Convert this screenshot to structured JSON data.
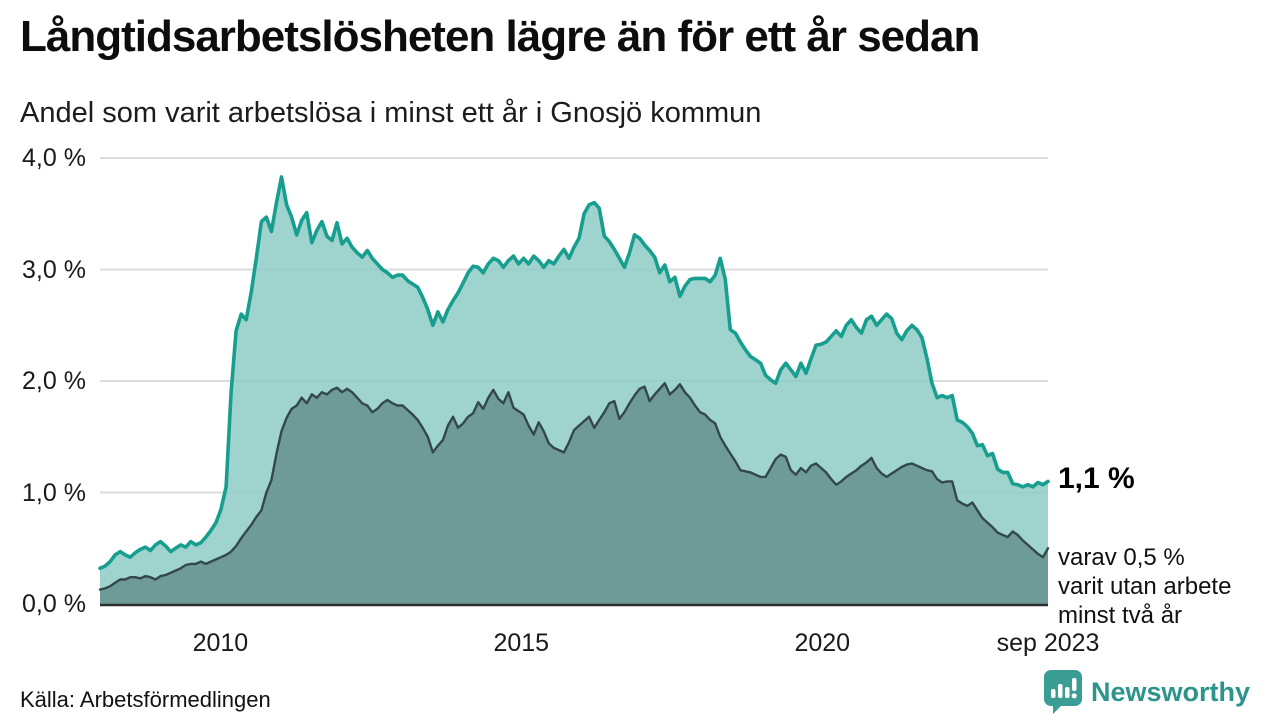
{
  "header": {
    "title": "Långtidsarbetslösheten lägre än för ett år sedan",
    "subtitle": "Andel som varit arbetslösa i minst ett år i Gnosjö kommun"
  },
  "annotations": {
    "end_value": "1,1 %",
    "note_line1": "varav 0,5 %",
    "note_line2": "varit utan arbete",
    "note_line3": "minst två år"
  },
  "footer": {
    "source": "Källa: Arbetsförmedlingen",
    "brand": "Newsworthy"
  },
  "chart_data": {
    "type": "area",
    "title": "Långtidsarbetslösheten lägre än för ett år sedan",
    "subtitle": "Andel som varit arbetslösa i minst ett år i Gnosjö kommun",
    "unit": "%",
    "x_start": "jan 2008",
    "x_end": "sep 2023",
    "frequency": "monthly",
    "ylim": [
      0,
      4
    ],
    "grid": true,
    "legend_position": "none",
    "y_ticks": [
      {
        "label": "0,0 %",
        "v": 0
      },
      {
        "label": "1,0 %",
        "v": 1
      },
      {
        "label": "2,0 %",
        "v": 2
      },
      {
        "label": "3,0 %",
        "v": 3
      },
      {
        "label": "4,0 %",
        "v": 4
      }
    ],
    "x_ticks": [
      {
        "label": "2010",
        "f": 0.127
      },
      {
        "label": "2015",
        "f": 0.4444
      },
      {
        "label": "2020",
        "f": 0.7619
      },
      {
        "label": "sep 2023",
        "f": 1.0
      }
    ],
    "gridline_values": [
      1,
      2,
      3,
      4
    ],
    "colors": {
      "line1": "#179e8f",
      "fill1": "#8dccc4",
      "line2": "#33484a",
      "fill2": "#6c9894",
      "grid": "#dcdce0",
      "axis": "#2e2e2e",
      "brand_teal": "#2d948b",
      "icon_teal": "#3a9e94"
    },
    "series": [
      {
        "name": "minst ett år",
        "end_value": 1.1,
        "values": [
          0.32,
          0.34,
          0.38,
          0.44,
          0.47,
          0.44,
          0.42,
          0.46,
          0.49,
          0.51,
          0.48,
          0.53,
          0.56,
          0.52,
          0.47,
          0.5,
          0.53,
          0.51,
          0.56,
          0.53,
          0.55,
          0.6,
          0.66,
          0.73,
          0.85,
          1.05,
          1.9,
          2.45,
          2.6,
          2.55,
          2.8,
          3.1,
          3.43,
          3.47,
          3.34,
          3.6,
          3.83,
          3.58,
          3.47,
          3.31,
          3.44,
          3.51,
          3.24,
          3.35,
          3.43,
          3.3,
          3.26,
          3.42,
          3.23,
          3.28,
          3.2,
          3.15,
          3.11,
          3.17,
          3.1,
          3.05,
          3.0,
          2.97,
          2.93,
          2.95,
          2.95,
          2.9,
          2.87,
          2.84,
          2.75,
          2.64,
          2.5,
          2.62,
          2.53,
          2.64,
          2.72,
          2.79,
          2.88,
          2.97,
          3.03,
          3.02,
          2.97,
          3.05,
          3.1,
          3.08,
          3.02,
          3.08,
          3.12,
          3.05,
          3.1,
          3.05,
          3.12,
          3.08,
          3.02,
          3.08,
          3.05,
          3.12,
          3.18,
          3.1,
          3.2,
          3.28,
          3.5,
          3.58,
          3.6,
          3.55,
          3.3,
          3.25,
          3.18,
          3.1,
          3.02,
          3.15,
          3.31,
          3.28,
          3.22,
          3.17,
          3.11,
          2.97,
          3.04,
          2.89,
          2.93,
          2.76,
          2.85,
          2.91,
          2.92,
          2.92,
          2.92,
          2.89,
          2.95,
          3.1,
          2.91,
          2.46,
          2.43,
          2.35,
          2.28,
          2.22,
          2.19,
          2.16,
          2.05,
          2.01,
          1.98,
          2.1,
          2.16,
          2.1,
          2.04,
          2.16,
          2.07,
          2.2,
          2.32,
          2.33,
          2.35,
          2.4,
          2.45,
          2.4,
          2.5,
          2.55,
          2.48,
          2.43,
          2.55,
          2.58,
          2.5,
          2.55,
          2.6,
          2.56,
          2.43,
          2.37,
          2.45,
          2.5,
          2.46,
          2.39,
          2.2,
          1.98,
          1.85,
          1.87,
          1.85,
          1.87,
          1.65,
          1.63,
          1.59,
          1.53,
          1.42,
          1.43,
          1.33,
          1.35,
          1.21,
          1.18,
          1.18,
          1.08,
          1.07,
          1.05,
          1.07,
          1.05,
          1.09,
          1.07,
          1.1
        ]
      },
      {
        "name": "minst två år",
        "end_value": 0.5,
        "values": [
          0.13,
          0.14,
          0.16,
          0.19,
          0.22,
          0.22,
          0.24,
          0.24,
          0.23,
          0.25,
          0.24,
          0.22,
          0.25,
          0.26,
          0.28,
          0.3,
          0.32,
          0.35,
          0.36,
          0.36,
          0.38,
          0.36,
          0.38,
          0.4,
          0.42,
          0.44,
          0.47,
          0.52,
          0.59,
          0.65,
          0.71,
          0.78,
          0.84,
          1.0,
          1.11,
          1.35,
          1.55,
          1.67,
          1.75,
          1.78,
          1.85,
          1.8,
          1.88,
          1.85,
          1.9,
          1.88,
          1.92,
          1.94,
          1.9,
          1.93,
          1.9,
          1.85,
          1.8,
          1.78,
          1.72,
          1.75,
          1.8,
          1.83,
          1.8,
          1.78,
          1.78,
          1.74,
          1.7,
          1.65,
          1.58,
          1.5,
          1.36,
          1.42,
          1.47,
          1.6,
          1.68,
          1.58,
          1.62,
          1.68,
          1.71,
          1.81,
          1.75,
          1.85,
          1.92,
          1.84,
          1.8,
          1.9,
          1.76,
          1.73,
          1.7,
          1.6,
          1.52,
          1.63,
          1.55,
          1.44,
          1.4,
          1.38,
          1.36,
          1.45,
          1.56,
          1.6,
          1.64,
          1.68,
          1.58,
          1.65,
          1.72,
          1.8,
          1.82,
          1.66,
          1.72,
          1.8,
          1.87,
          1.93,
          1.95,
          1.82,
          1.88,
          1.93,
          1.98,
          1.88,
          1.92,
          1.97,
          1.9,
          1.85,
          1.78,
          1.72,
          1.7,
          1.65,
          1.62,
          1.5,
          1.42,
          1.35,
          1.28,
          1.2,
          1.19,
          1.18,
          1.16,
          1.14,
          1.14,
          1.22,
          1.3,
          1.34,
          1.32,
          1.2,
          1.16,
          1.22,
          1.18,
          1.24,
          1.26,
          1.22,
          1.18,
          1.12,
          1.07,
          1.1,
          1.14,
          1.17,
          1.2,
          1.24,
          1.27,
          1.31,
          1.22,
          1.17,
          1.14,
          1.17,
          1.2,
          1.23,
          1.25,
          1.26,
          1.24,
          1.22,
          1.2,
          1.19,
          1.12,
          1.09,
          1.1,
          1.1,
          0.93,
          0.9,
          0.88,
          0.91,
          0.84,
          0.77,
          0.73,
          0.69,
          0.64,
          0.62,
          0.6,
          0.65,
          0.62,
          0.57,
          0.53,
          0.49,
          0.45,
          0.42,
          0.5
        ]
      }
    ]
  }
}
